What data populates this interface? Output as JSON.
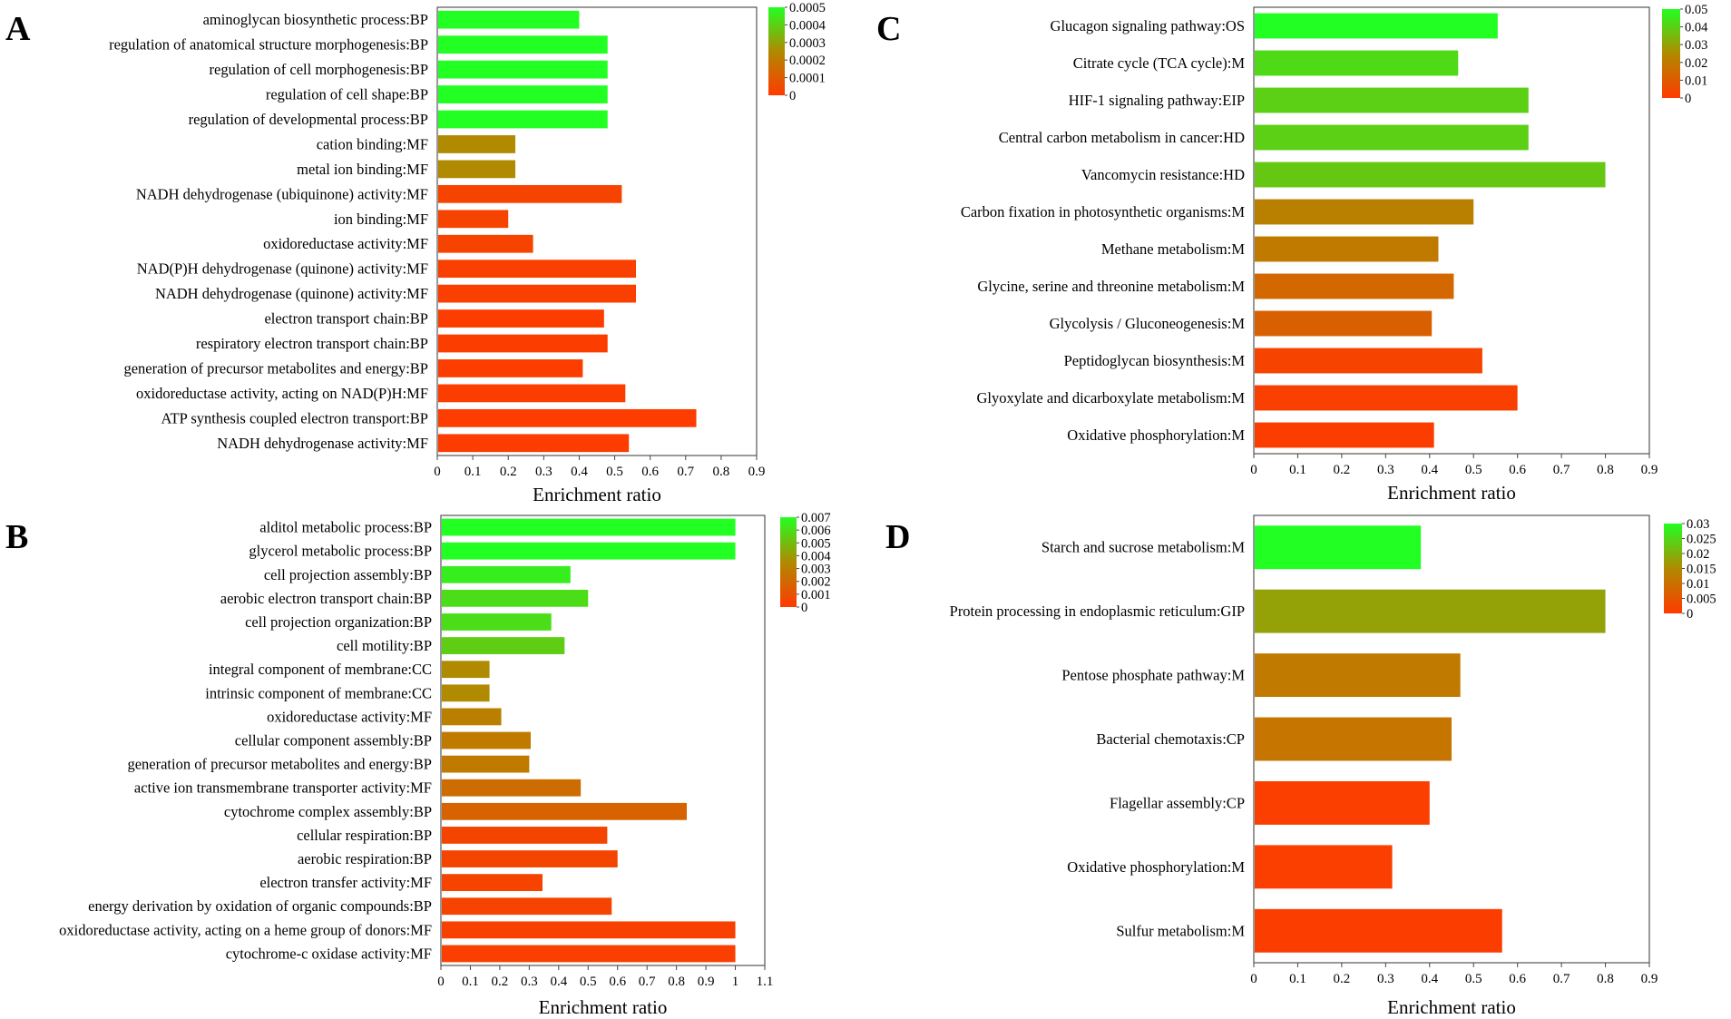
{
  "colors": {
    "high": "#22ff22",
    "mid": "#b08a00",
    "low": "#ff3a00"
  },
  "chart_data": [
    {
      "panel": "A",
      "type": "bar",
      "orientation": "horizontal",
      "xlabel": "Enrichment ratio",
      "xlim": [
        0,
        0.9
      ],
      "xticks": [
        "0",
        "0.1",
        "0.2",
        "0.3",
        "0.4",
        "0.5",
        "0.6",
        "0.7",
        "0.8",
        "0.9"
      ],
      "colorbar": {
        "min": 0,
        "max": 0.0005,
        "ticks": [
          "0.0005",
          "0.0004",
          "0.0003",
          "0.0002",
          "0.0001",
          "0"
        ]
      },
      "categories": [
        "aminoglycan biosynthetic process:BP",
        "regulation of anatomical structure morphogenesis:BP",
        "regulation of cell morphogenesis:BP",
        "regulation of cell shape:BP",
        "regulation of developmental process:BP",
        "cation binding:MF",
        "metal ion binding:MF",
        "NADH dehydrogenase (ubiquinone) activity:MF",
        "ion binding:MF",
        "oxidoreductase activity:MF",
        "NAD(P)H dehydrogenase (quinone) activity:MF",
        "NADH dehydrogenase (quinone) activity:MF",
        "electron transport chain:BP",
        "respiratory electron transport chain:BP",
        "generation of precursor metabolites and energy:BP",
        "oxidoreductase activity, acting on NAD(P)H:MF",
        "ATP synthesis coupled electron transport:BP",
        "NADH dehydrogenase activity:MF"
      ],
      "values": [
        0.4,
        0.48,
        0.48,
        0.48,
        0.48,
        0.22,
        0.22,
        0.52,
        0.2,
        0.27,
        0.56,
        0.56,
        0.47,
        0.48,
        0.41,
        0.53,
        0.73,
        0.54
      ],
      "color_values": [
        0.0005,
        0.0005,
        0.0005,
        0.0005,
        0.0005,
        0.00025,
        0.00025,
        3e-05,
        3e-05,
        3e-05,
        2e-05,
        2e-05,
        1e-05,
        1e-05,
        1e-05,
        1e-05,
        5e-06,
        5e-06
      ]
    },
    {
      "panel": "B",
      "type": "bar",
      "orientation": "horizontal",
      "xlabel": "Enrichment ratio",
      "xlim": [
        0,
        1.1
      ],
      "xticks": [
        "0",
        "0.1",
        "0.2",
        "0.3",
        "0.4",
        "0.5",
        "0.6",
        "0.7",
        "0.8",
        "0.9",
        "1",
        "1.1"
      ],
      "colorbar": {
        "min": 0,
        "max": 0.007,
        "ticks": [
          "0.007",
          "0.006",
          "0.005",
          "0.004",
          "0.003",
          "0.002",
          "0.001",
          "0"
        ]
      },
      "categories": [
        "alditol metabolic process:BP",
        "glycerol metabolic process:BP",
        "cell projection assembly:BP",
        "aerobic electron transport chain:BP",
        "cell projection organization:BP",
        "cell motility:BP",
        "integral component of membrane:CC",
        "intrinsic component of membrane:CC",
        "oxidoreductase activity:MF",
        "cellular component assembly:BP",
        "generation of precursor metabolites and energy:BP",
        "active ion transmembrane transporter activity:MF",
        "cytochrome complex assembly:BP",
        "cellular respiration:BP",
        "aerobic respiration:BP",
        "electron transfer activity:MF",
        "energy derivation by oxidation of organic compounds:BP",
        "oxidoreductase activity, acting on a heme group of donors:MF",
        "cytochrome-c oxidase activity:MF"
      ],
      "values": [
        1.0,
        1.0,
        0.44,
        0.5,
        0.375,
        0.42,
        0.165,
        0.165,
        0.205,
        0.305,
        0.3,
        0.475,
        0.835,
        0.565,
        0.6,
        0.345,
        0.58,
        1.0,
        1.0
      ],
      "color_values": [
        0.007,
        0.007,
        0.0065,
        0.006,
        0.006,
        0.0055,
        0.0035,
        0.0035,
        0.003,
        0.0028,
        0.0028,
        0.0022,
        0.0018,
        0.0005,
        0.0005,
        0.0004,
        0.0004,
        0.0003,
        0.0002
      ]
    },
    {
      "panel": "C",
      "type": "bar",
      "orientation": "horizontal",
      "xlabel": "Enrichment ratio",
      "xlim": [
        0,
        0.9
      ],
      "xticks": [
        "0",
        "0.1",
        "0.2",
        "0.3",
        "0.4",
        "0.5",
        "0.6",
        "0.7",
        "0.8",
        "0.9"
      ],
      "colorbar": {
        "min": 0,
        "max": 0.05,
        "ticks": [
          "0.05",
          "0.04",
          "0.03",
          "0.02",
          "0.01",
          "0"
        ]
      },
      "categories": [
        "Glucagon signaling pathway:OS",
        "Citrate cycle (TCA cycle):M",
        "HIF-1 signaling pathway:EIP",
        "Central carbon metabolism in cancer:HD",
        "Vancomycin resistance:HD",
        "Carbon fixation in photosynthetic organisms:M",
        "Methane metabolism:M",
        "Glycine, serine and threonine metabolism:M",
        "Glycolysis / Gluconeogenesis:M",
        "Peptidoglycan biosynthesis:M",
        "Glyoxylate and dicarboxylate metabolism:M",
        "Oxidative phosphorylation:M"
      ],
      "values": [
        0.555,
        0.465,
        0.625,
        0.625,
        0.8,
        0.5,
        0.42,
        0.455,
        0.405,
        0.52,
        0.6,
        0.41
      ],
      "color_values": [
        0.05,
        0.042,
        0.04,
        0.04,
        0.038,
        0.022,
        0.02,
        0.014,
        0.012,
        0.003,
        0.002,
        0.001
      ]
    },
    {
      "panel": "D",
      "type": "bar",
      "orientation": "horizontal",
      "xlabel": "Enrichment ratio",
      "xlim": [
        0,
        0.9
      ],
      "xticks": [
        "0",
        "0.1",
        "0.2",
        "0.3",
        "0.4",
        "0.5",
        "0.6",
        "0.7",
        "0.8",
        "0.9"
      ],
      "colorbar": {
        "min": 0,
        "max": 0.03,
        "ticks": [
          "0.03",
          "0.025",
          "0.02",
          "0.015",
          "0.01",
          "0.005",
          "0"
        ]
      },
      "categories": [
        "Starch and sucrose metabolism:M",
        "Protein processing in endoplasmic reticulum:GIP",
        "Pentose phosphate pathway:M",
        "Bacterial chemotaxis:CP",
        "Flagellar assembly:CP",
        "Oxidative phosphorylation:M",
        "Sulfur metabolism:M"
      ],
      "values": [
        0.38,
        0.8,
        0.47,
        0.45,
        0.4,
        0.315,
        0.565
      ],
      "color_values": [
        0.03,
        0.018,
        0.012,
        0.011,
        0.001,
        0.001,
        0.0005
      ]
    }
  ]
}
